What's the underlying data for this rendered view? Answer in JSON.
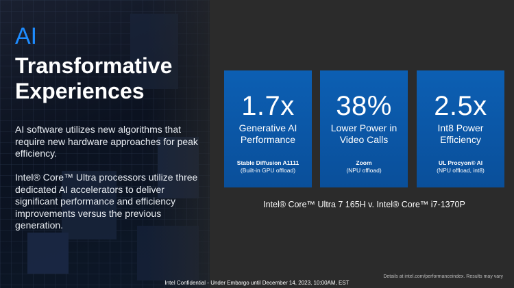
{
  "title": {
    "accent": "AI",
    "main": "Transformative Experiences"
  },
  "paragraphs": [
    "AI software utilizes new algorithms that require new hardware approaches for peak efficiency.",
    "Intel® Core™ Ultra processors utilize three dedicated AI accelerators to deliver significant performance and efficiency improvements versus the previous generation."
  ],
  "cards": [
    {
      "value": "1.7x",
      "label": "Generative AI Performance",
      "benchmark": "Stable Diffusion A1111",
      "condition": "(Built-in GPU offload)"
    },
    {
      "value": "38%",
      "label": "Lower Power in Video Calls",
      "benchmark": "Zoom",
      "condition": "(NPU offload)"
    },
    {
      "value": "2.5x",
      "label": "Int8 Power Efficiency",
      "benchmark": "UL Procyon® AI",
      "condition": "(NPU offload, int8)"
    }
  ],
  "comparison": "Intel® Core™ Ultra 7 165H v. Intel® Core™ i7-1370P",
  "footnote": "Details at intel.com/performanceindex. Results may vary",
  "confidential": "Intel Confidential - Under Embargo until December 14, 2023, 10:00AM, EST",
  "colors": {
    "accent": "#1e8cff",
    "card": "#0c5fb3",
    "background": "#2b2b2b"
  }
}
